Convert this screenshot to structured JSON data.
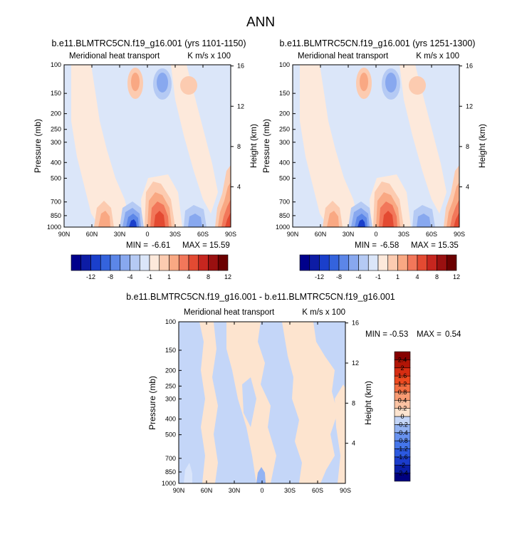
{
  "page_title": "ANN",
  "colors": {
    "background": "#ffffff",
    "frame": "#000000",
    "field_palette": [
      "#00008b",
      "#0d1ca5",
      "#1a3fcb",
      "#3463dd",
      "#5c86e8",
      "#88a8ef",
      "#b5caf4",
      "#dbe6f9",
      "#fde9db",
      "#fccbb0",
      "#f9a883",
      "#f2775a",
      "#e34a32",
      "#c6261f",
      "#9a1010",
      "#6b0000"
    ],
    "diff_palette": [
      "#000080",
      "#0a1ea8",
      "#1b3ccc",
      "#2c59e0",
      "#4576ea",
      "#6892ef",
      "#93b3f3",
      "#c4d6f8",
      "#fde4cf",
      "#fbc3a3",
      "#f89b73",
      "#f46e42",
      "#ed4a20",
      "#d62d12",
      "#b11506",
      "#860000"
    ]
  },
  "chart_data": [
    {
      "type": "heatmap",
      "title": "b.e11.BLMTRC5CN.f19_g16.001 (yrs 1101-1150)",
      "left_label": "Meridional heat transport",
      "right_label": "K m/s x 100",
      "xlabel": "",
      "ylabel": "Pressure (mb)",
      "ylabel_right": "Height (km)",
      "x_ticks": [
        "90N",
        "60N",
        "30N",
        "0",
        "30S",
        "60S",
        "90S"
      ],
      "y_ticks": [
        "100",
        "150",
        "200",
        "250",
        "300",
        "400",
        "500",
        "700",
        "850",
        "1000"
      ],
      "y_ticks_right": [
        "16",
        "12",
        "8",
        "4"
      ],
      "stats": {
        "min_label": "MIN =",
        "min": "-6.61",
        "max_label": "MAX =",
        "max": "15.59"
      },
      "colorbar": {
        "orientation": "horizontal",
        "labels": [
          "-12",
          "-8",
          "-4",
          "-1",
          "1",
          "4",
          "8",
          "12"
        ]
      }
    },
    {
      "type": "heatmap",
      "title": "b.e11.BLMTRC5CN.f19_g16.001 (yrs 1251-1300)",
      "left_label": "Meridional heat transport",
      "right_label": "K m/s x 100",
      "xlabel": "",
      "ylabel": "Pressure (mb)",
      "ylabel_right": "Height (km)",
      "x_ticks": [
        "90N",
        "60N",
        "30N",
        "0",
        "30S",
        "60S",
        "90S"
      ],
      "y_ticks": [
        "100",
        "150",
        "200",
        "250",
        "300",
        "400",
        "500",
        "700",
        "850",
        "1000"
      ],
      "y_ticks_right": [
        "16",
        "12",
        "8",
        "4"
      ],
      "stats": {
        "min_label": "MIN =",
        "min": "-6.58",
        "max_label": "MAX =",
        "max": "15.35"
      },
      "colorbar": {
        "orientation": "horizontal",
        "labels": [
          "-12",
          "-8",
          "-4",
          "-1",
          "1",
          "4",
          "8",
          "12"
        ]
      }
    },
    {
      "type": "heatmap",
      "title": "b.e11.BLMTRC5CN.f19_g16.001 - b.e11.BLMTRC5CN.f19_g16.001",
      "left_label": "Meridional heat transport",
      "right_label": "K m/s x 100",
      "xlabel": "",
      "ylabel": "Pressure (mb)",
      "ylabel_right": "Height (km)",
      "x_ticks": [
        "90N",
        "60N",
        "30N",
        "0",
        "30S",
        "60S",
        "90S"
      ],
      "y_ticks": [
        "100",
        "150",
        "200",
        "250",
        "300",
        "400",
        "500",
        "700",
        "850",
        "1000"
      ],
      "y_ticks_right": [
        "16",
        "12",
        "8",
        "4"
      ],
      "stats": {
        "min_label": "MIN =",
        "min": "-0.53",
        "max_label": "MAX =",
        "max": "0.54"
      },
      "colorbar": {
        "orientation": "vertical",
        "labels": [
          "2.4",
          "2",
          "1.6",
          "1.2",
          "0.8",
          "0.4",
          "0.2",
          "0",
          "-0.2",
          "-0.4",
          "-0.8",
          "-1.2",
          "-1.6",
          "-2",
          "-2.4"
        ]
      }
    }
  ]
}
